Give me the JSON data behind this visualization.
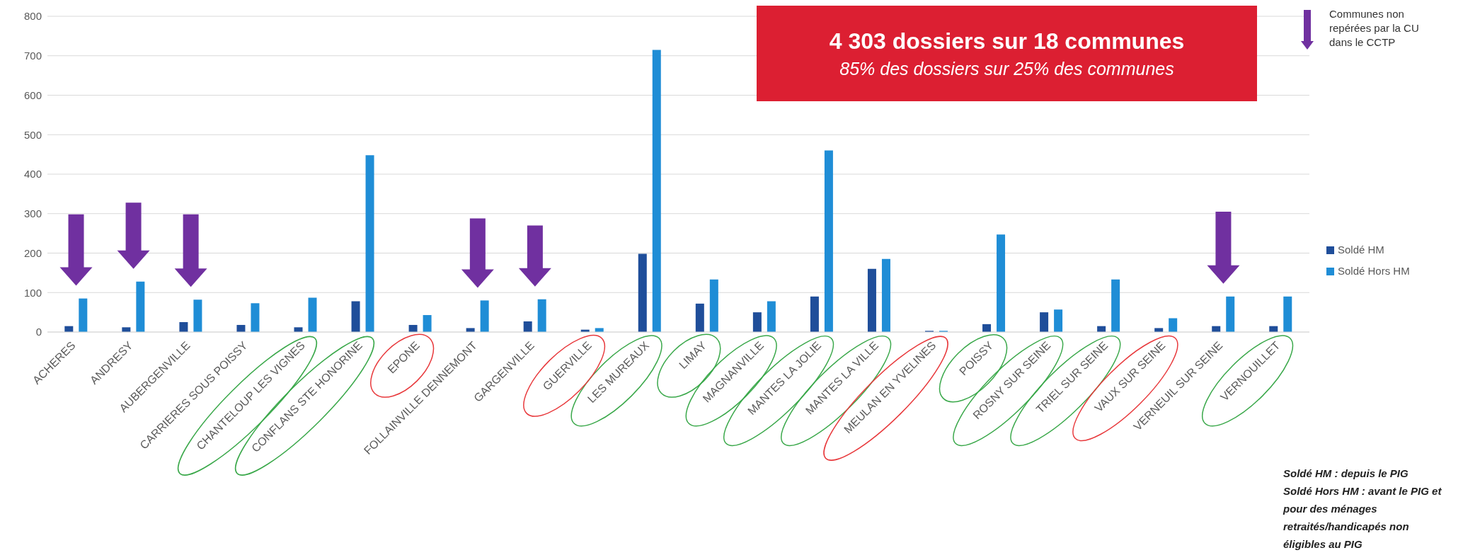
{
  "chart_data": {
    "type": "bar",
    "title": "4 303 dossiers sur 18 communes",
    "subtitle": "85% des dossiers sur 25% des communes",
    "categories": [
      "ACHERES",
      "ANDRESY",
      "AUBERGENVILLE",
      "CARRIERES SOUS POISSY",
      "CHANTELOUP LES VIGNES",
      "CONFLANS STE HONORINE",
      "EPONE",
      "FOLLAINVILLE DENNEMONT",
      "GARGENVILLE",
      "GUERVILLE",
      "LES MUREAUX",
      "LIMAY",
      "MAGNANVILLE",
      "MANTES LA JOLIE",
      "MANTES LA VILLE",
      "MEULAN EN YVELINES",
      "POISSY",
      "ROSNY SUR SEINE",
      "TRIEL SUR SEINE",
      "VAUX SUR SEINE",
      "VERNEUIL SUR SEINE",
      "VERNOUILLET"
    ],
    "series": [
      {
        "name": "Soldé HM",
        "color": "#1f4e9a",
        "values": [
          15,
          12,
          25,
          18,
          12,
          78,
          18,
          10,
          27,
          6,
          198,
          72,
          50,
          90,
          160,
          3,
          20,
          50,
          15,
          10,
          15,
          15
        ]
      },
      {
        "name": "Soldé Hors HM",
        "color": "#1f8dd6",
        "values": [
          85,
          128,
          82,
          73,
          87,
          448,
          43,
          80,
          83,
          10,
          715,
          133,
          78,
          460,
          185,
          3,
          247,
          57,
          133,
          35,
          90,
          90
        ]
      }
    ],
    "ylim": [
      0,
      800
    ],
    "yticks": [
      0,
      100,
      200,
      300,
      400,
      500,
      600,
      700,
      800
    ],
    "grid": "y",
    "legend": "right",
    "annotations": [
      "Communes non repérées par la CU dans le CCTP",
      "Soldé HM : depuis le PIG",
      "Soldé Hors HM : avant le PIG et pour des ménages retraités/handicapés non éligibles au PIG"
    ]
  }
}
